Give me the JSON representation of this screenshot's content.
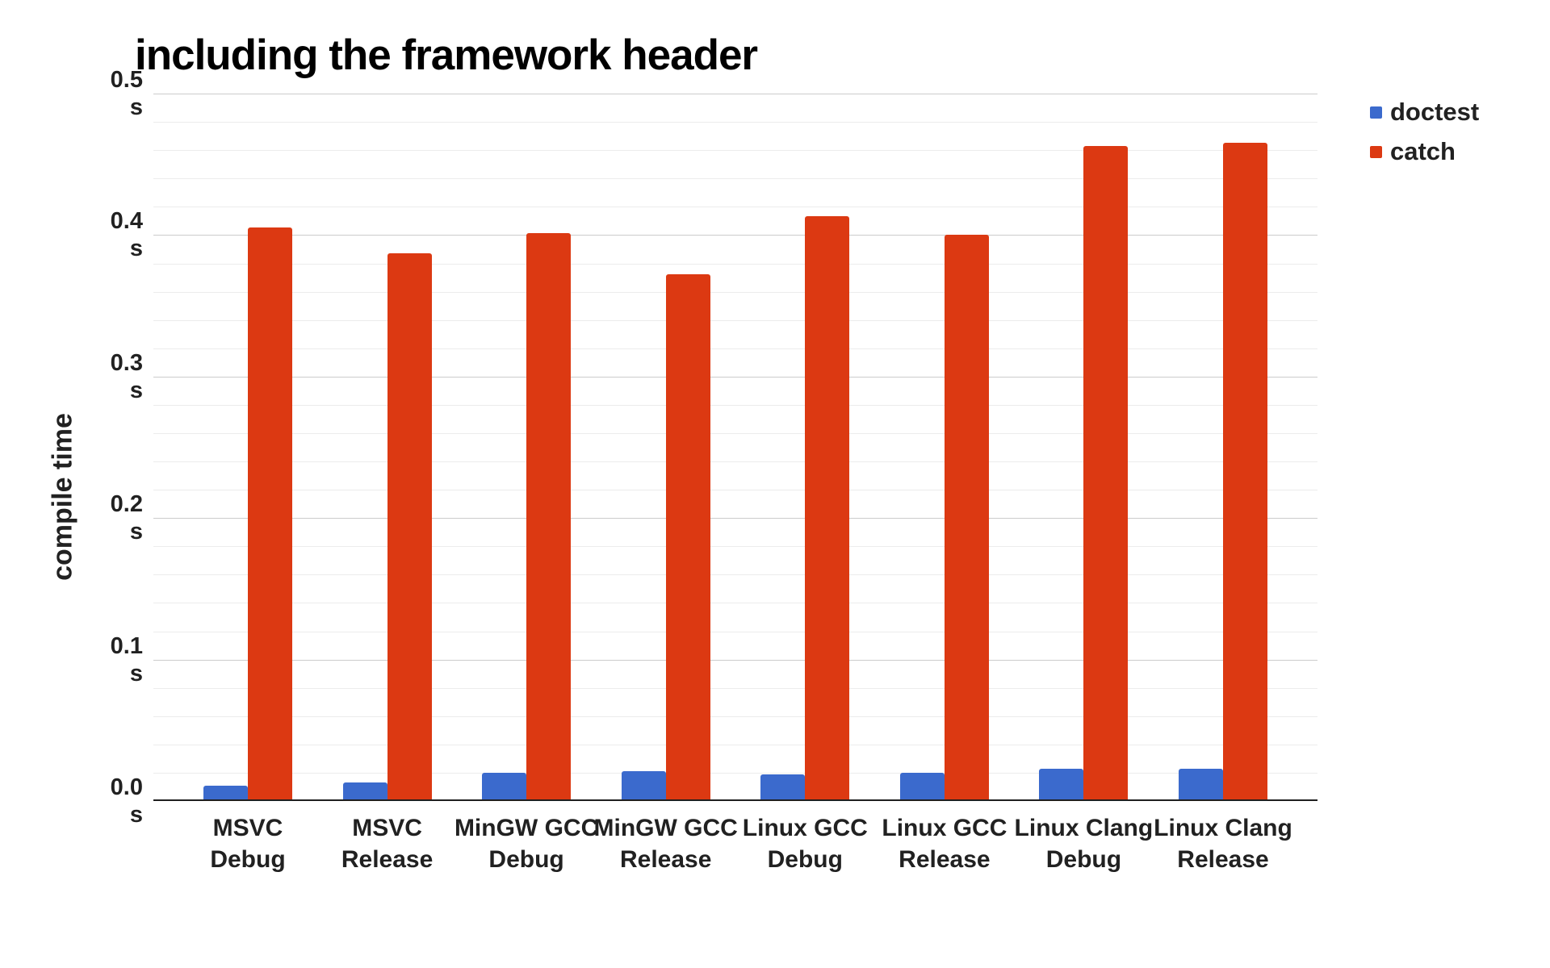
{
  "colors": {
    "major_grid": "#cccccc",
    "minor_grid": "#ececec",
    "axis_line": "#1f1f1f",
    "text": "#212121",
    "title_text": "#000000"
  },
  "chart_data": {
    "type": "bar",
    "title": "including the framework header",
    "xlabel": "",
    "ylabel": "compile time",
    "y_unit": "s",
    "ylim": [
      0,
      0.5
    ],
    "y_major_step": 0.1,
    "y_minor_step": 0.02,
    "grid": true,
    "legend_position": "top-right",
    "categories": [
      "MSVC Debug",
      "MSVC Release",
      "MinGW GCC Debug",
      "MinGW GCC Release",
      "Linux GCC Debug",
      "Linux GCC Release",
      "Linux Clang Debug",
      "Linux Clang Release"
    ],
    "series": [
      {
        "name": "doctest",
        "color": "#3B6ACD",
        "values": [
          0.01,
          0.012,
          0.019,
          0.02,
          0.018,
          0.019,
          0.022,
          0.022
        ]
      },
      {
        "name": "catch",
        "color": "#DC3912",
        "values": [
          0.405,
          0.387,
          0.401,
          0.372,
          0.413,
          0.4,
          0.463,
          0.465
        ]
      }
    ]
  }
}
